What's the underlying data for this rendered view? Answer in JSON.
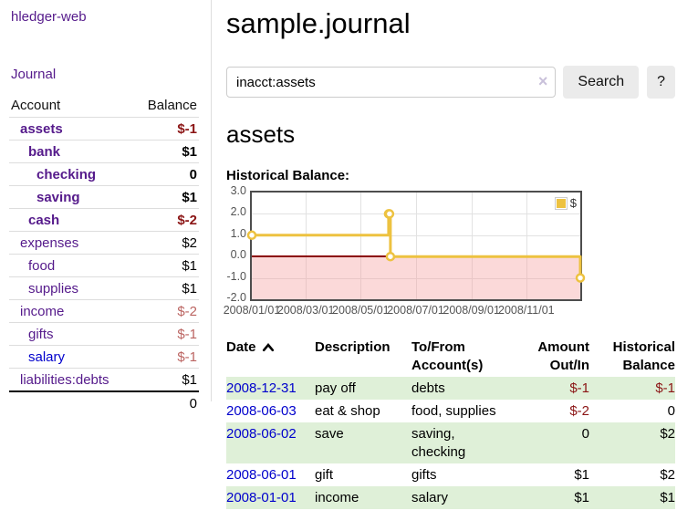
{
  "sidebar": {
    "brand": "hledger-web",
    "nav_journal": "Journal",
    "accounts": {
      "headers": {
        "account": "Account",
        "balance": "Balance"
      },
      "rows": [
        {
          "name": "assets",
          "balance": "$-1",
          "level": 1,
          "bold": true,
          "neg": true
        },
        {
          "name": "bank",
          "balance": "$1",
          "level": 2,
          "bold": true
        },
        {
          "name": "checking",
          "balance": "0",
          "level": 3,
          "bold": true
        },
        {
          "name": "saving",
          "balance": "$1",
          "level": 3,
          "bold": true
        },
        {
          "name": "cash",
          "balance": "$-2",
          "level": 2,
          "bold": true,
          "neg": true
        },
        {
          "name": "expenses",
          "balance": "$2",
          "level": 1
        },
        {
          "name": "food",
          "balance": "$1",
          "level": 2
        },
        {
          "name": "supplies",
          "balance": "$1",
          "level": 2
        },
        {
          "name": "income",
          "balance": "$-2",
          "level": 1,
          "dim": true
        },
        {
          "name": "gifts",
          "balance": "$-1",
          "level": 2,
          "dim": true
        },
        {
          "name": "salary",
          "balance": "$-1",
          "level": 2,
          "dim": true,
          "blue": true
        },
        {
          "name": "liabilities:debts",
          "balance": "$1",
          "level": 1
        }
      ],
      "total": "0"
    }
  },
  "header": {
    "title": "sample.journal"
  },
  "search": {
    "value": "inacct:assets",
    "clear_icon": "×",
    "button": "Search",
    "help_button": "?"
  },
  "account_page": {
    "heading": "assets",
    "chart_label": "Historical Balance:"
  },
  "chart_data": {
    "type": "line",
    "step": true,
    "title": "Historical Balance",
    "xmin": "2008-01-01",
    "xmax": "2008-12-31",
    "ylim": [
      -2,
      3
    ],
    "grid": true,
    "legend_position": "top-right",
    "series": [
      {
        "name": "$",
        "color": "#edc240",
        "points": [
          [
            "2008-01-01",
            1
          ],
          [
            "2008-06-01",
            2
          ],
          [
            "2008-06-02",
            2
          ],
          [
            "2008-06-03",
            0
          ],
          [
            "2008-12-31",
            -1
          ]
        ]
      }
    ],
    "x_ticks": [
      {
        "date": "2008-01-01",
        "label": "2008/01/01"
      },
      {
        "date": "2008-03-01",
        "label": "2008/03/01"
      },
      {
        "date": "2008-05-01",
        "label": "2008/05/01"
      },
      {
        "date": "2008-07-01",
        "label": "2008/07/01"
      },
      {
        "date": "2008-09-01",
        "label": "2008/09/01"
      },
      {
        "date": "2008-11-01",
        "label": "2008/11/01"
      }
    ],
    "y_ticks": [
      {
        "v": 3,
        "label": "3.0"
      },
      {
        "v": 2,
        "label": "2.0"
      },
      {
        "v": 1,
        "label": "1.0"
      },
      {
        "v": 0,
        "label": "0.0"
      },
      {
        "v": -1,
        "label": "-1.0"
      },
      {
        "v": -2,
        "label": "-2.0"
      }
    ],
    "zero_line_color": "#8b0000",
    "negative_region_color": "rgba(245,160,160,0.4)"
  },
  "register": {
    "headers": {
      "date": "Date",
      "description": "Description",
      "accounts": "To/From Account(s)",
      "amount": "Amount Out/In",
      "balance": "Historical Balance"
    },
    "rows": [
      {
        "date": "2008-12-31",
        "description": "pay off",
        "accounts_lines": [
          "debts"
        ],
        "amount": "$-1",
        "amount_neg": true,
        "balance": "$-1",
        "balance_neg": true
      },
      {
        "date": "2008-06-03",
        "description": "eat & shop",
        "accounts_lines": [
          "food, supplies"
        ],
        "amount": "$-2",
        "amount_neg": true,
        "balance": "0"
      },
      {
        "date": "2008-06-02",
        "description": "save",
        "accounts_lines": [
          "saving,",
          "checking"
        ],
        "amount": "0",
        "balance": "$2"
      },
      {
        "date": "2008-06-01",
        "description": "gift",
        "accounts_lines": [
          "gifts"
        ],
        "amount": "$1",
        "balance": "$2"
      },
      {
        "date": "2008-01-01",
        "description": "income",
        "accounts_lines": [
          "salary"
        ],
        "amount": "$1",
        "balance": "$1"
      }
    ]
  },
  "colors": {
    "link_purple": "#551a8b",
    "link_blue": "#0000cc",
    "negative_red": "#8b1515",
    "negative_dim_red": "#bb6461",
    "row_stripe_green": "#dff0d8",
    "series_gold": "#edc240",
    "zero_line": "#8b0000"
  }
}
